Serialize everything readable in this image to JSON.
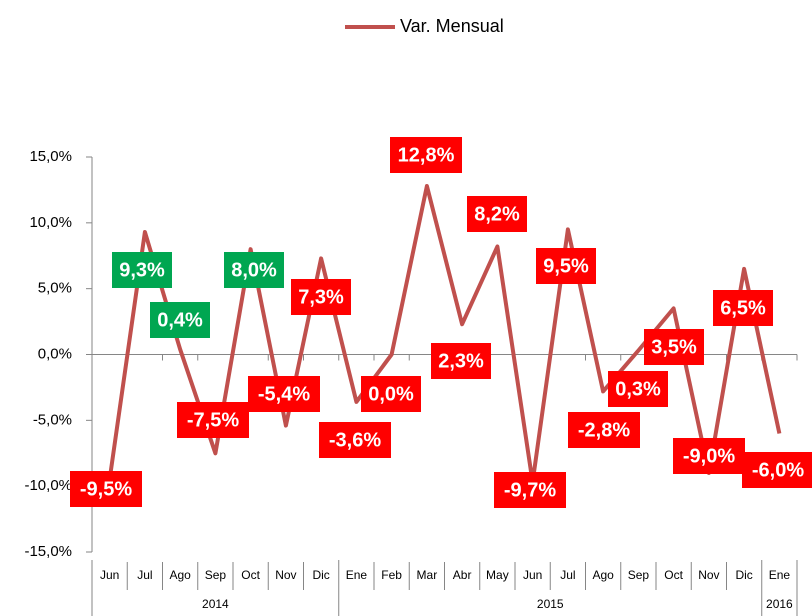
{
  "chart_data": {
    "type": "line",
    "categories": [
      "Jun",
      "Jul",
      "Ago",
      "Sep",
      "Oct",
      "Nov",
      "Dic",
      "Ene",
      "Feb",
      "Mar",
      "Abr",
      "May",
      "Jun",
      "Jul",
      "Ago",
      "Sep",
      "Oct",
      "Nov",
      "Dic",
      "Ene"
    ],
    "category_groups": [
      {
        "label": "2014",
        "span": 7
      },
      {
        "label": "2015",
        "span": 12
      },
      {
        "label": "2016",
        "span": 1
      }
    ],
    "series": [
      {
        "name": "Var. Mensual",
        "color": "#c0504d",
        "values": [
          -9.5,
          9.3,
          0.4,
          -7.5,
          8.0,
          -5.4,
          7.3,
          -3.6,
          0.0,
          12.8,
          2.3,
          8.2,
          -9.7,
          9.5,
          -2.8,
          0.3,
          3.5,
          -9.0,
          6.5,
          -6.0
        ],
        "value_labels": [
          "-9,5%",
          "9,3%",
          "0,4%",
          "-7,5%",
          "8,0%",
          "-5,4%",
          "7,3%",
          "-3,6%",
          "0,0%",
          "12,8%",
          "2,3%",
          "8,2%",
          "-9,7%",
          "9,5%",
          "-2,8%",
          "0,3%",
          "3,5%",
          "-9,0%",
          "6,5%",
          "-6,0%"
        ],
        "label_colors": [
          "#ff0000",
          "#00a651",
          "#00a651",
          "#ff0000",
          "#00a651",
          "#ff0000",
          "#ff0000",
          "#ff0000",
          "#ff0000",
          "#ff0000",
          "#ff0000",
          "#ff0000",
          "#ff0000",
          "#ff0000",
          "#ff0000",
          "#ff0000",
          "#ff0000",
          "#ff0000",
          "#ff0000",
          "#ff0000"
        ]
      }
    ],
    "ylim": [
      -15,
      15
    ],
    "yticks": [
      {
        "value": -15,
        "label": "-15,0%"
      },
      {
        "value": -10,
        "label": "-10,0%"
      },
      {
        "value": -5,
        "label": "-5,0%"
      },
      {
        "value": 0,
        "label": "0,0%"
      },
      {
        "value": 5,
        "label": "5,0%"
      },
      {
        "value": 10,
        "label": "10,0%"
      },
      {
        "value": 15,
        "label": "15,0%"
      }
    ],
    "legend": "top"
  }
}
